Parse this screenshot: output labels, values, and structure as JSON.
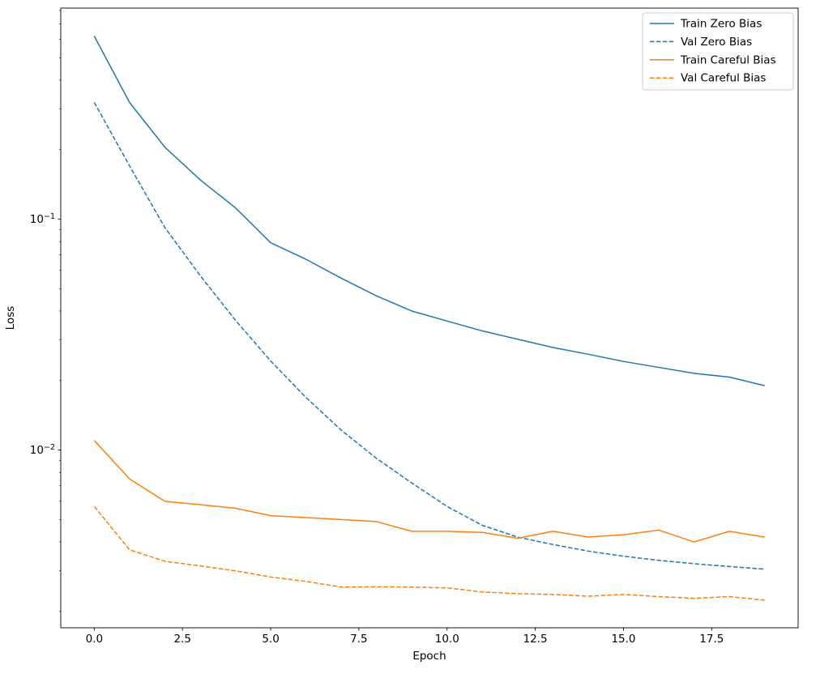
{
  "figure": {
    "background": "#ffffff"
  },
  "chart_data": {
    "type": "line",
    "title": "",
    "xlabel": "Epoch",
    "ylabel": "Loss",
    "xscale": "linear",
    "yscale": "log",
    "xlim": [
      -0.95,
      19.95
    ],
    "ylim": [
      0.0017,
      0.82
    ],
    "xticks": [
      0.0,
      2.5,
      5.0,
      7.5,
      10.0,
      12.5,
      15.0,
      17.5
    ],
    "yticks": [
      0.1,
      0.01
    ],
    "grid": false,
    "legend_position": "upper right",
    "legend_border": "#cccccc",
    "x": [
      0,
      1,
      2,
      3,
      4,
      5,
      6,
      7,
      8,
      9,
      10,
      11,
      12,
      13,
      14,
      15,
      16,
      17,
      18,
      19
    ],
    "series": [
      {
        "name": "Train Zero Bias",
        "color": "#1f77b4",
        "dash": "solid",
        "values": [
          0.62,
          0.32,
          0.205,
          0.148,
          0.112,
          0.079,
          0.067,
          0.0555,
          0.0465,
          0.04,
          0.0362,
          0.0328,
          0.0302,
          0.0278,
          0.026,
          0.0242,
          0.0228,
          0.0215,
          0.0207,
          0.019
        ]
      },
      {
        "name": "Val Zero Bias",
        "color": "#1f77b4",
        "dash": "dashed",
        "values": [
          0.32,
          0.17,
          0.092,
          0.057,
          0.0365,
          0.0243,
          0.0169,
          0.0122,
          0.0092,
          0.0072,
          0.0057,
          0.00472,
          0.0042,
          0.0039,
          0.00365,
          0.00347,
          0.00333,
          0.00322,
          0.00313,
          0.00305
        ]
      },
      {
        "name": "Train Careful Bias",
        "color": "#ff7f0e",
        "dash": "solid",
        "values": [
          0.011,
          0.0075,
          0.006,
          0.0058,
          0.0056,
          0.0052,
          0.0051,
          0.005,
          0.0049,
          0.00445,
          0.00445,
          0.0044,
          0.00415,
          0.00445,
          0.0042,
          0.0043,
          0.0045,
          0.004,
          0.00445,
          0.0042
        ]
      },
      {
        "name": "Val Careful Bias",
        "color": "#ff7f0e",
        "dash": "dashed",
        "values": [
          0.0057,
          0.0037,
          0.0033,
          0.00315,
          0.003,
          0.00282,
          0.0027,
          0.00255,
          0.00256,
          0.00255,
          0.00253,
          0.00243,
          0.00239,
          0.00237,
          0.00233,
          0.00237,
          0.00232,
          0.00228,
          0.00232,
          0.00224
        ]
      }
    ]
  }
}
